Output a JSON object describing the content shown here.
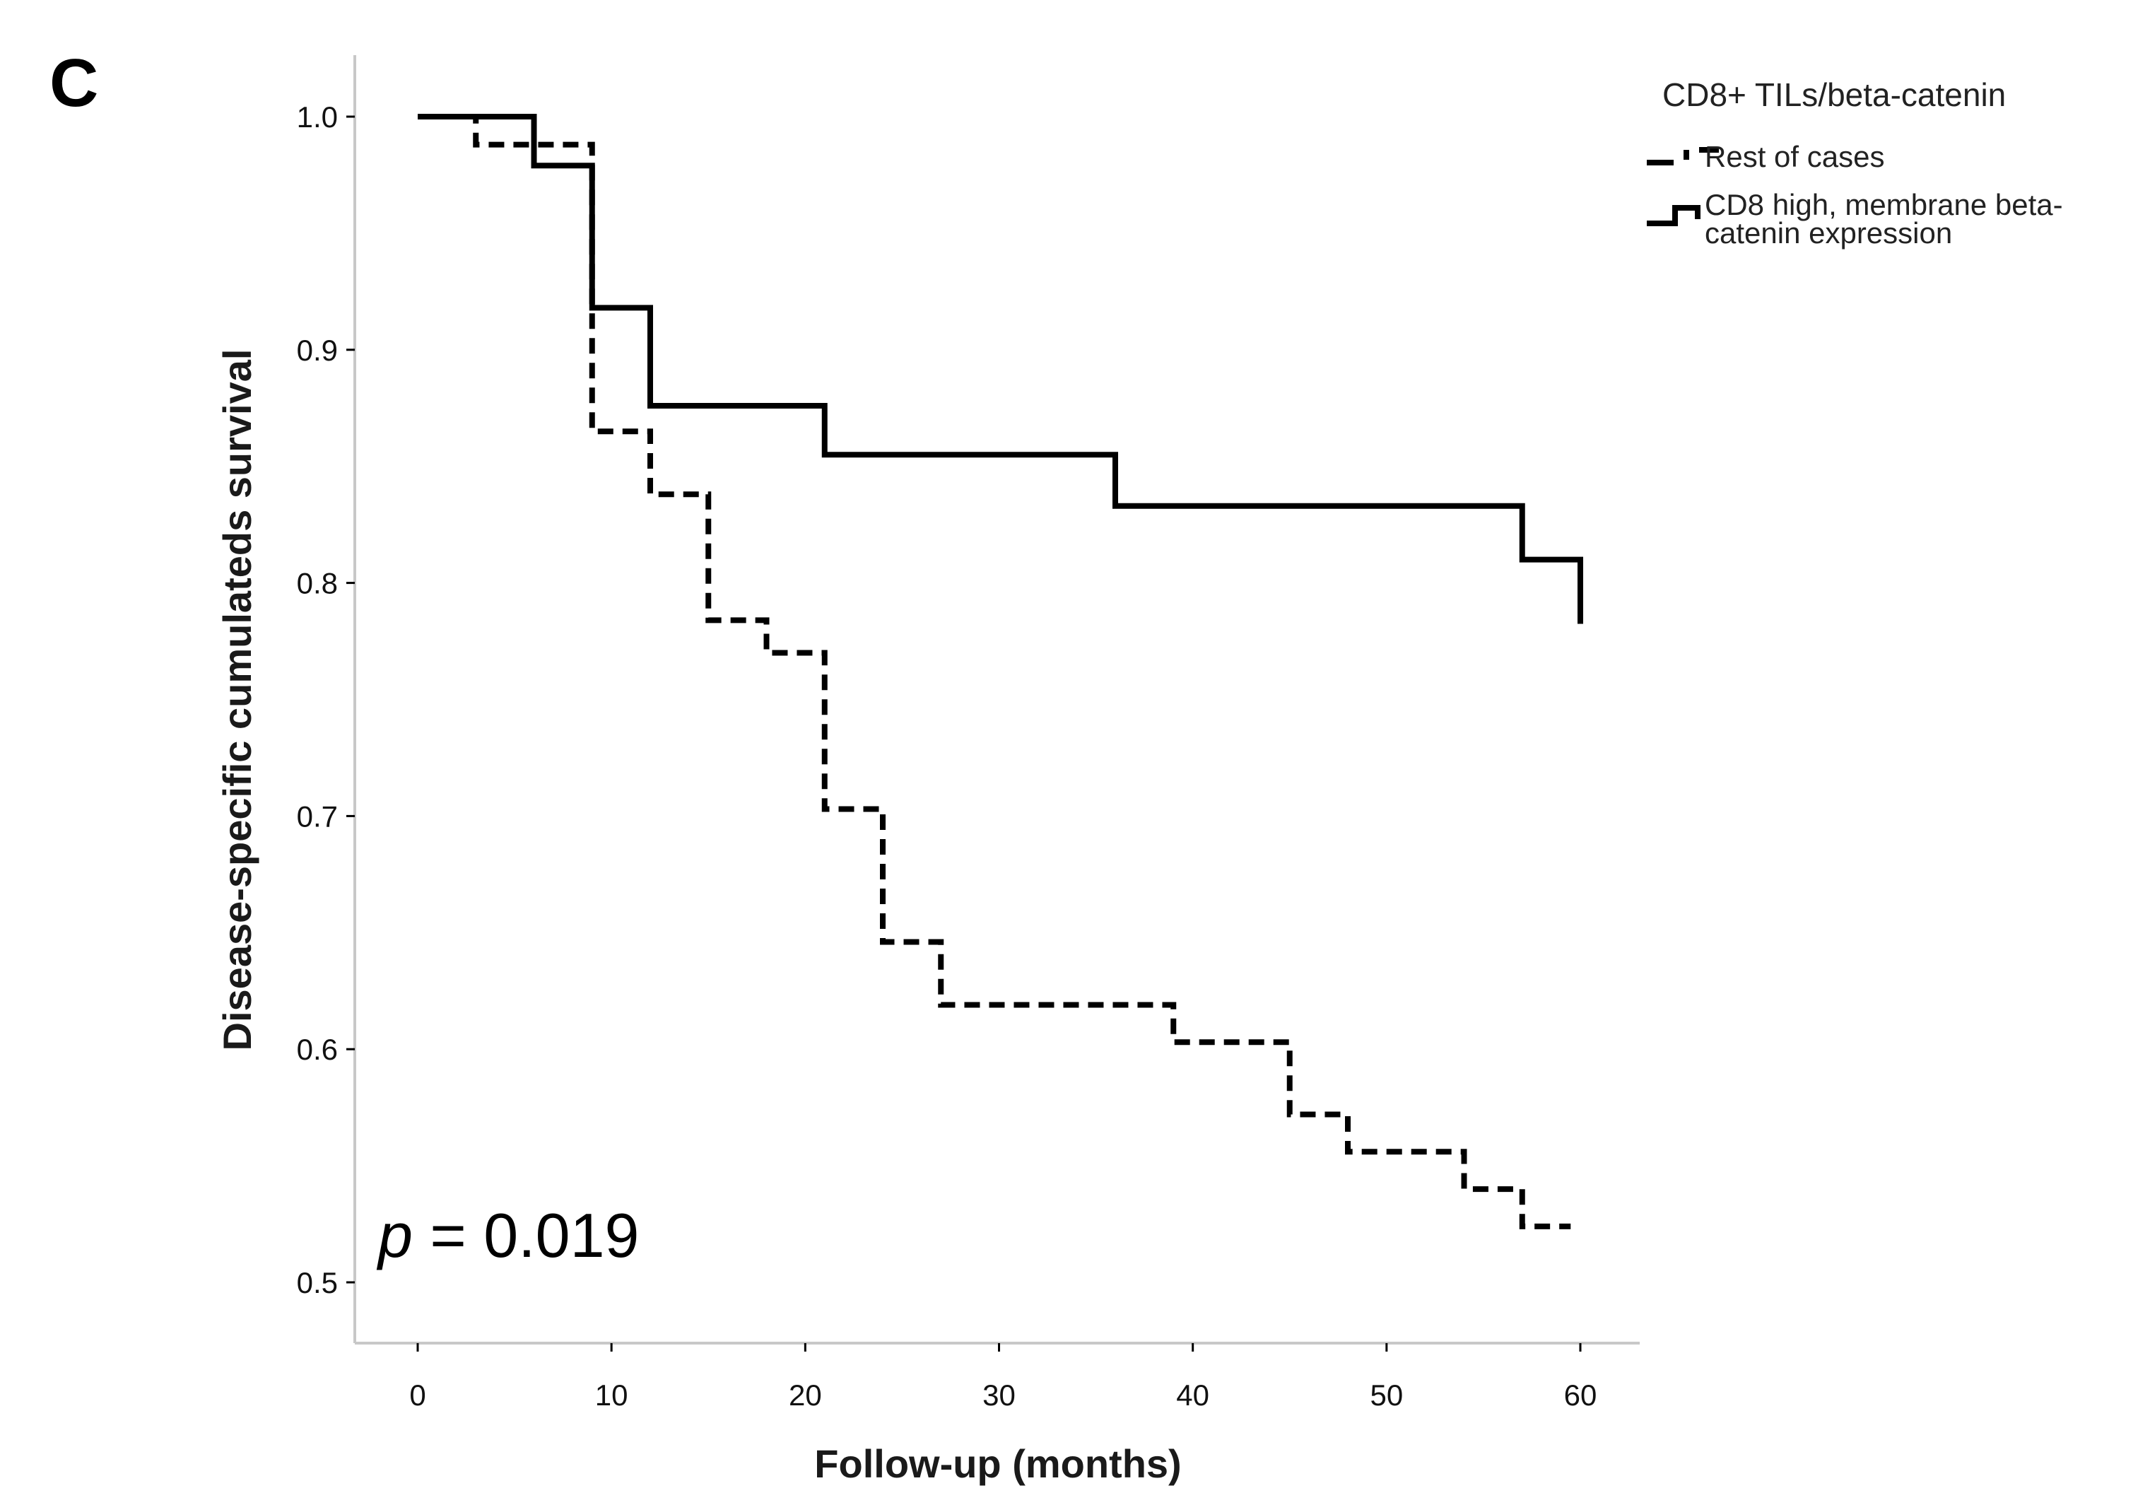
{
  "panel_letter": "C",
  "p_value": {
    "symbol": "p",
    "text": " = 0.019"
  },
  "chart_data": {
    "type": "line",
    "subtype": "kaplan-meier step",
    "title": "",
    "xlabel": "Follow-up (months)",
    "ylabel": "Disease-specific cumulateds survival",
    "xlim": [
      -3,
      63
    ],
    "ylim": [
      0.47,
      1.03
    ],
    "xticks": [
      0,
      10,
      20,
      30,
      40,
      50,
      60
    ],
    "yticks": [
      0.5,
      0.6,
      0.7,
      0.8,
      0.9,
      1.0
    ],
    "ytick_labels": [
      "0.5",
      "0.6",
      "0.7",
      "0.8",
      "0.9",
      "1.0"
    ],
    "grid": false,
    "legend": {
      "title": "CD8+ TILs/beta-catenin",
      "placement": "top-right",
      "entries": [
        {
          "label_lines": [
            "Rest of cases"
          ],
          "style": "dashed"
        },
        {
          "label_lines": [
            "CD8 high, membrane beta-",
            "catenin expression"
          ],
          "style": "solid"
        }
      ]
    },
    "series": [
      {
        "name": "Rest of cases",
        "style": "dashed",
        "color": "#000000",
        "steps": [
          [
            0,
            1.0
          ],
          [
            3,
            0.988
          ],
          [
            9,
            0.865
          ],
          [
            12,
            0.838
          ],
          [
            15,
            0.784
          ],
          [
            18,
            0.77
          ],
          [
            21,
            0.703
          ],
          [
            24,
            0.646
          ],
          [
            27,
            0.619
          ],
          [
            39,
            0.603
          ],
          [
            45,
            0.572
          ],
          [
            48,
            0.556
          ],
          [
            54,
            0.54
          ],
          [
            57,
            0.524
          ]
        ],
        "end_x": 59.5
      },
      {
        "name": "CD8 high, membrane beta-catenin expression",
        "style": "solid",
        "color": "#000000",
        "steps": [
          [
            0,
            1.0
          ],
          [
            6,
            0.979
          ],
          [
            9,
            0.918
          ],
          [
            12,
            0.876
          ],
          [
            21,
            0.855
          ],
          [
            36,
            0.833
          ],
          [
            57,
            0.81
          ],
          [
            60,
            0.787
          ]
        ],
        "end_x": 60
      }
    ]
  }
}
